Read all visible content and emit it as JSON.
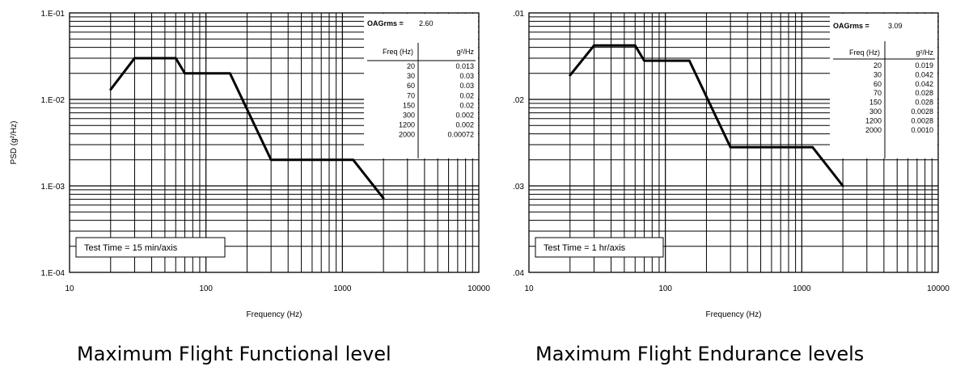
{
  "colors": {
    "grid": "#000000",
    "line": "#000000",
    "background": "#ffffff"
  },
  "chart_data": [
    {
      "type": "line",
      "caption": "Maximum Flight Functional level",
      "xlabel": "Frequency (Hz)",
      "ylabel": "PSD (g²/Hz)",
      "x_scale": "log",
      "y_scale": "log",
      "xlim": [
        10,
        10000
      ],
      "ylim": [
        0.0001,
        0.1
      ],
      "x_tick_labels": [
        "10",
        "100",
        "1000",
        "10000"
      ],
      "y_tick_labels": [
        "1.E-01",
        "1.E-02",
        "1.E-03",
        "1.E-04"
      ],
      "grid": true,
      "x": [
        20,
        30,
        60,
        70,
        150,
        300,
        1200,
        2000
      ],
      "y": [
        0.013,
        0.03,
        0.03,
        0.02,
        0.02,
        0.002,
        0.002,
        0.00072
      ],
      "rms_label": "OAGrms =",
      "rms_value": "2.60",
      "table": {
        "headers": [
          "Freq (Hz)",
          "g²/Hz"
        ],
        "rows": [
          [
            "20",
            "0.013"
          ],
          [
            "30",
            "0.03"
          ],
          [
            "60",
            "0.03"
          ],
          [
            "70",
            "0.02"
          ],
          [
            "150",
            "0.02"
          ],
          [
            "300",
            "0.002"
          ],
          [
            "1200",
            "0.002"
          ],
          [
            "2000",
            "0.00072"
          ]
        ]
      },
      "annotation": "Test Time = 15 min/axis"
    },
    {
      "type": "line",
      "caption": "Maximum Flight Endurance levels",
      "xlabel": "Frequency (Hz)",
      "ylabel": "",
      "x_scale": "log",
      "y_scale": "log",
      "xlim": [
        10,
        10000
      ],
      "ylim": [
        0.0001,
        0.1
      ],
      "x_tick_labels": [
        "10",
        "100",
        "1000",
        "10000"
      ],
      "y_tick_labels": ".01,.02,.03,.04",
      "grid": true,
      "x": [
        20,
        30,
        60,
        70,
        150,
        300,
        1200,
        2000
      ],
      "y": [
        0.019,
        0.042,
        0.042,
        0.028,
        0.028,
        0.0028,
        0.0028,
        0.001
      ],
      "rms_label": "OAGrms =",
      "rms_value": "3.09",
      "table": {
        "headers": [
          "Freq (Hz)",
          "g²/Hz"
        ],
        "rows": [
          [
            "20",
            "0.019"
          ],
          [
            "30",
            "0.042"
          ],
          [
            "60",
            "0.042"
          ],
          [
            "70",
            "0.028"
          ],
          [
            "150",
            "0.028"
          ],
          [
            "300",
            "0.0028"
          ],
          [
            "1200",
            "0.0028"
          ],
          [
            "2000",
            "0.0010"
          ]
        ]
      },
      "annotation": "Test Time = 1 hr/axis"
    }
  ]
}
